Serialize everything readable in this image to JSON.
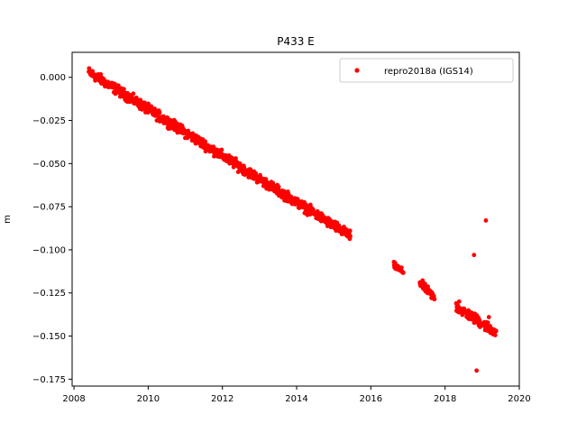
{
  "chart_data": {
    "type": "scatter",
    "title": "P433 E",
    "xlabel": "",
    "ylabel": "m",
    "xlim": [
      2007.95,
      2020.0
    ],
    "ylim": [
      -0.179,
      0.0145
    ],
    "xticks": [
      2008,
      2010,
      2012,
      2014,
      2016,
      2018,
      2020
    ],
    "xtick_labels": [
      "2008",
      "2010",
      "2012",
      "2014",
      "2016",
      "2018",
      "2020"
    ],
    "yticks": [
      0.0,
      -0.025,
      -0.05,
      -0.075,
      -0.1,
      -0.125,
      -0.15,
      -0.175
    ],
    "ytick_labels": [
      "0.000",
      "−0.025",
      "−0.050",
      "−0.075",
      "−0.100",
      "−0.125",
      "−0.150",
      "−0.175"
    ],
    "grid": false,
    "legend_position": "top-right",
    "series": [
      {
        "name": "repro2018a (IGS14)",
        "color": "#ff0000",
        "marker": "dot",
        "segments": [
          {
            "x_start": 2008.4,
            "x_end": 2015.45,
            "y_start": 0.003,
            "y_end": -0.092,
            "scatter": 0.0024
          },
          {
            "x_start": 2016.62,
            "x_end": 2016.88,
            "y_start": -0.109,
            "y_end": -0.113,
            "scatter": 0.0015
          },
          {
            "x_start": 2017.32,
            "x_end": 2017.72,
            "y_start": -0.119,
            "y_end": -0.128,
            "scatter": 0.002
          },
          {
            "x_start": 2018.3,
            "x_end": 2019.38,
            "y_start": -0.133,
            "y_end": -0.148,
            "scatter": 0.0025
          }
        ],
        "outliers": [
          {
            "x": 2019.1,
            "y": -0.083
          },
          {
            "x": 2018.78,
            "y": -0.103
          },
          {
            "x": 2018.85,
            "y": -0.17
          },
          {
            "x": 2018.38,
            "y": -0.13
          },
          {
            "x": 2019.18,
            "y": -0.139
          }
        ]
      }
    ]
  }
}
